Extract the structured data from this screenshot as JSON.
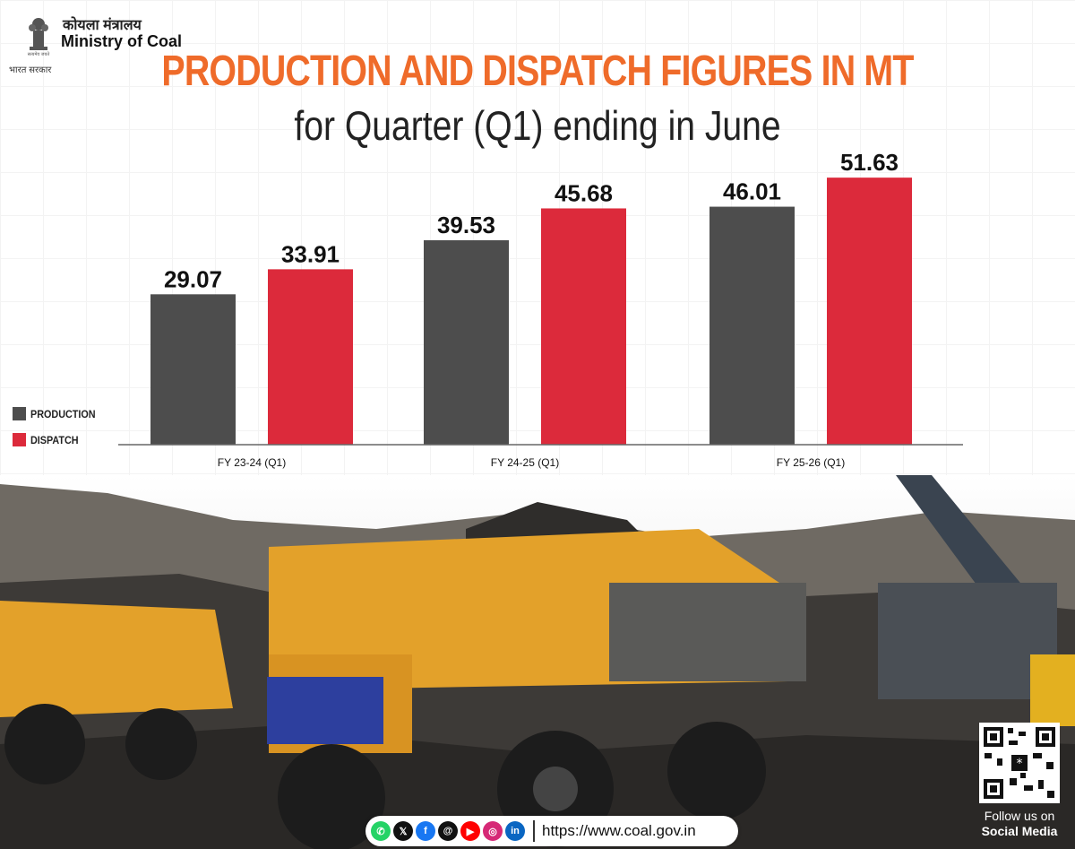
{
  "header": {
    "ministry_hindi": "कोयला मंत्रालय",
    "ministry_english": "Ministry of Coal",
    "govt_hindi": "भारत सरकार",
    "title": "PRODUCTION AND DISPATCH FIGURES IN MT",
    "subtitle": "for Quarter (Q1) ending in June"
  },
  "legend": {
    "production_label": "PRODUCTION",
    "dispatch_label": "DISPATCH"
  },
  "colors": {
    "production": "#4d4d4d",
    "dispatch": "#dc2a3b",
    "title": "#ef6b2a"
  },
  "chart_data": {
    "type": "bar",
    "title": "PRODUCTION AND DISPATCH FIGURES IN MT",
    "subtitle": "for Quarter (Q1) ending in June",
    "categories": [
      "FY 23-24 (Q1)",
      "FY 24-25 (Q1)",
      "FY 25-26 (Q1)"
    ],
    "series": [
      {
        "name": "PRODUCTION",
        "values": [
          29.07,
          39.53,
          46.01
        ],
        "labels": [
          "29.07",
          "39.53",
          "46.01"
        ]
      },
      {
        "name": "DISPATCH",
        "values": [
          33.91,
          45.68,
          51.63
        ],
        "labels": [
          "33.91",
          "45.68",
          "51.63"
        ]
      }
    ],
    "xlabel": "",
    "ylabel": "",
    "ylim": [
      0,
      52
    ],
    "grid": false,
    "legend_position": "left"
  },
  "footer": {
    "social_icons": [
      "whatsapp-icon",
      "x-icon",
      "facebook-icon",
      "threads-icon",
      "youtube-icon",
      "instagram-icon",
      "linkedin-icon"
    ],
    "website": "https://www.coal.gov.in",
    "follow_line1": "Follow us on",
    "follow_line2": "Social Media"
  }
}
